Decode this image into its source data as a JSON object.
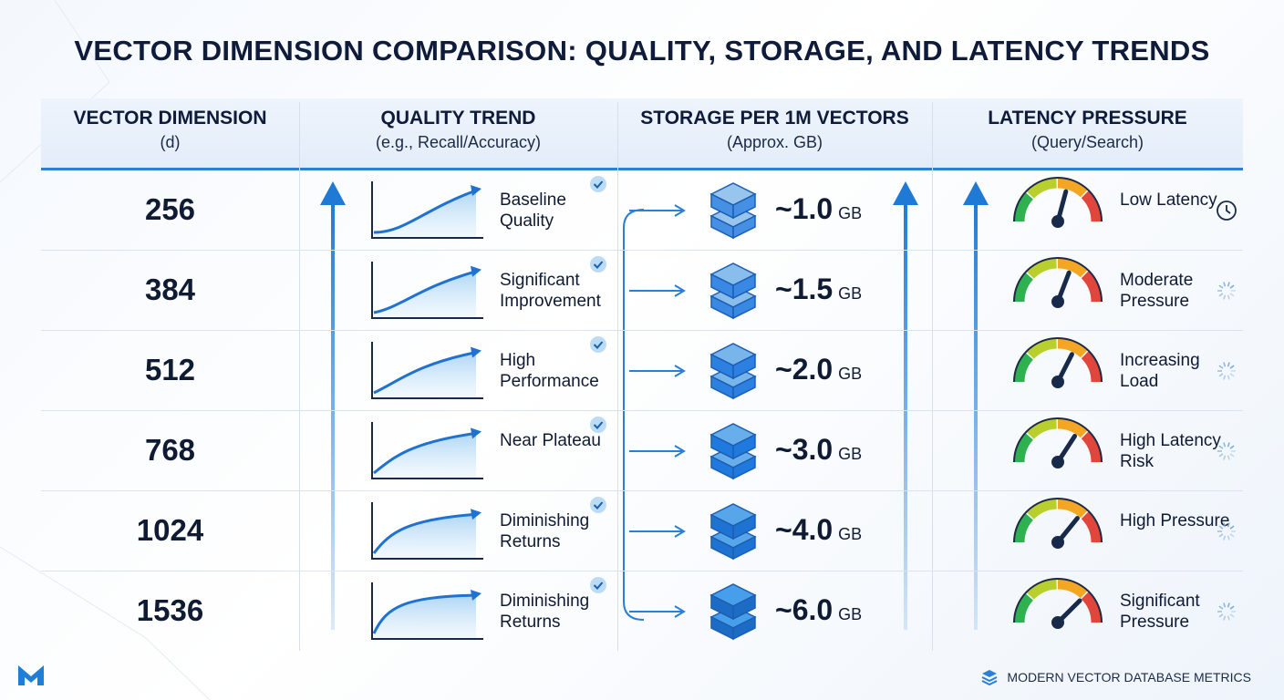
{
  "title": "VECTOR DIMENSION COMPARISON: QUALITY, STORAGE, AND LATENCY TRENDS",
  "table": {
    "columns": [
      {
        "title": "VECTOR DIMENSION",
        "subtitle": "(d)"
      },
      {
        "title": "QUALITY TREND",
        "subtitle": "(e.g., Recall/Accuracy)"
      },
      {
        "title": "STORAGE PER 1M VECTORS",
        "subtitle": "(Approx. GB)"
      },
      {
        "title": "LATENCY PRESSURE",
        "subtitle": "(Query/Search)"
      }
    ],
    "rows": [
      {
        "dimension": "256",
        "quality": "Baseline Quality",
        "storage": "~1.0",
        "unit": "GB",
        "latency": "Low Latency"
      },
      {
        "dimension": "384",
        "quality": "Significant Improvement",
        "storage": "~1.5",
        "unit": "GB",
        "latency": "Moderate Pressure"
      },
      {
        "dimension": "512",
        "quality": "High Performance",
        "storage": "~2.0",
        "unit": "GB",
        "latency": "Increasing Load"
      },
      {
        "dimension": "768",
        "quality": "Near Plateau",
        "storage": "~3.0",
        "unit": "GB",
        "latency": "High Latency Risk"
      },
      {
        "dimension": "1024",
        "quality": "Diminishing Returns",
        "storage": "~4.0",
        "unit": "GB",
        "latency": "High Pressure"
      },
      {
        "dimension": "1536",
        "quality": "Diminishing Returns",
        "storage": "~6.0",
        "unit": "GB",
        "latency": "Significant Pressure"
      }
    ]
  },
  "footer": "MODERN VECTOR DATABASE METRICS"
}
